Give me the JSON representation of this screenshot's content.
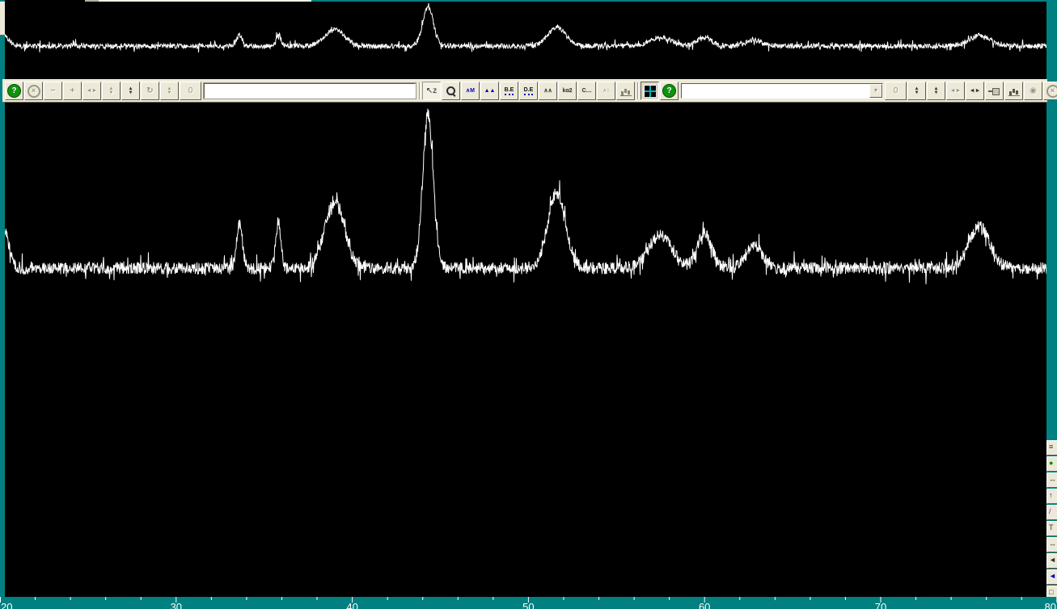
{
  "colors": {
    "workspace_teal": "#008080",
    "toolbar_bg": "#ece9d8",
    "plot_bg": "#000000",
    "trace": "#ffffff",
    "help_green": "#0e930e",
    "icon_blue": "#0000bd",
    "axis_text": "#ffffff"
  },
  "toolbar": {
    "input_value": "",
    "combo_value": "",
    "items": [
      {
        "type": "button",
        "name": "help-button",
        "icon": "help-icon",
        "glyph": "?",
        "style": "help",
        "interactable": true
      },
      {
        "type": "button",
        "name": "abort-button",
        "icon": "close-circle-icon",
        "glyph": "×",
        "style": "xcircle",
        "interactable": false
      },
      {
        "type": "button",
        "name": "zoom-out-button",
        "icon": "minus-icon",
        "glyph": "−",
        "style": "emboss bold",
        "interactable": true
      },
      {
        "type": "button",
        "name": "zoom-in-button",
        "icon": "plus-icon",
        "glyph": "+",
        "style": "emboss bold",
        "interactable": true
      },
      {
        "type": "button",
        "name": "expand-horizontal-button",
        "icon": "h-arrows-icon",
        "glyph": "◄►",
        "style": "emboss small",
        "interactable": true
      },
      {
        "type": "button",
        "name": "scale-vertical-button",
        "icon": "v-arrows-icon",
        "glyph": "▲\n▼",
        "style": "emboss tiny",
        "interactable": true
      },
      {
        "type": "button",
        "name": "pan-vertical-button",
        "icon": "v-arrows-solid-icon",
        "glyph": "▲\n▼",
        "style": "dark tiny",
        "interactable": true
      },
      {
        "type": "button",
        "name": "reset-view-button",
        "icon": "refresh-icon",
        "glyph": "↻",
        "style": "emboss bold",
        "interactable": true
      },
      {
        "type": "button",
        "name": "step-vertical-button",
        "icon": "v-arrows-icon",
        "glyph": "▲\n▼",
        "style": "emboss tiny",
        "interactable": true
      },
      {
        "type": "button",
        "name": "counter-left",
        "icon": "zero-icon",
        "glyph": "0",
        "style": "emboss wide",
        "interactable": false
      },
      {
        "type": "input",
        "name": "scan-name-input"
      },
      {
        "type": "sep",
        "name": "toolbar-separator-1"
      },
      {
        "type": "button",
        "name": "pointer-mode-button",
        "icon": "cursor-z-icon",
        "glyph": "↖z",
        "style": "dark active",
        "interactable": true
      },
      {
        "type": "button",
        "name": "zoom-mode-button",
        "icon": "magnifier-icon",
        "glyph": "",
        "style": "zoom",
        "interactable": true
      },
      {
        "type": "button",
        "name": "peak-search-button",
        "icon": "peak-marker-icon",
        "glyph": "∧M",
        "style": "blue small bold",
        "interactable": true
      },
      {
        "type": "button",
        "name": "profile-fit-button",
        "icon": "filled-peaks-icon",
        "glyph": "▲▲",
        "style": "blue small",
        "interactable": true
      },
      {
        "type": "button",
        "name": "background-edit-button",
        "icon": "be-icon",
        "glyph": "B.E",
        "style": "udots",
        "interactable": true
      },
      {
        "type": "button",
        "name": "data-edit-button",
        "icon": "de-icon",
        "glyph": "D.E",
        "style": "udots",
        "interactable": true
      },
      {
        "type": "button",
        "name": "smooth-button",
        "icon": "outline-peaks-icon",
        "glyph": "∧∧",
        "style": "dark small bold",
        "interactable": true
      },
      {
        "type": "button",
        "name": "kalpha2-strip-button",
        "icon": "kalpha2-icon",
        "glyph": "kα2",
        "style": "dark small bold",
        "interactable": true
      },
      {
        "type": "button",
        "name": "calculate-button",
        "icon": "c-dots-icon",
        "glyph": "C…",
        "style": "dark small bold",
        "interactable": true
      },
      {
        "type": "button",
        "name": "compare-button",
        "icon": "peaks-arrows-icon",
        "glyph": "∧↕",
        "style": "emboss small",
        "interactable": false
      },
      {
        "type": "button",
        "name": "histogram-scale-button",
        "icon": "bars-arrow-icon",
        "glyph": "",
        "style": "bars",
        "interactable": false
      },
      {
        "type": "sep",
        "name": "toolbar-separator-2"
      },
      {
        "type": "button",
        "name": "tile-view-button",
        "icon": "window-grid-icon",
        "glyph": "",
        "style": "grid pressed",
        "interactable": true
      },
      {
        "type": "button",
        "name": "help-button-2",
        "icon": "help-icon",
        "glyph": "?",
        "style": "help",
        "interactable": true
      },
      {
        "type": "combo",
        "name": "phase-combobox"
      },
      {
        "type": "button",
        "name": "counter-right",
        "icon": "zero-icon",
        "glyph": "0",
        "style": "emboss wide",
        "interactable": false
      },
      {
        "type": "button",
        "name": "scroll-up-down-button",
        "icon": "v-arrows-solid-icon",
        "glyph": "▲\n▼",
        "style": "dark tiny",
        "interactable": true
      },
      {
        "type": "button",
        "name": "page-up-down-button",
        "icon": "v-arrows-solid-icon",
        "glyph": "▲\n▼",
        "style": "dark tiny",
        "interactable": true
      },
      {
        "type": "button",
        "name": "scroll-left-right-button",
        "icon": "h-arrows-icon",
        "glyph": "◄►",
        "style": "emboss small",
        "interactable": true
      },
      {
        "type": "button",
        "name": "page-left-right-button",
        "icon": "h-arrows-solid-icon",
        "glyph": "◄►",
        "style": "dark small",
        "interactable": true
      },
      {
        "type": "button",
        "name": "pin-button",
        "icon": "pushpin-icon",
        "glyph": "",
        "style": "pin",
        "interactable": true
      },
      {
        "type": "button",
        "name": "histogram-button",
        "icon": "bar-chart-icon",
        "glyph": "",
        "style": "bars dark-bars",
        "interactable": true
      },
      {
        "type": "button",
        "name": "target-button",
        "icon": "dartboard-icon",
        "glyph": "◉",
        "style": "emboss",
        "interactable": false
      },
      {
        "type": "button",
        "name": "cancel-button",
        "icon": "close-circle-icon",
        "glyph": "×",
        "style": "xcircle",
        "interactable": false
      },
      {
        "type": "button",
        "name": "help-button-3",
        "icon": "help-icon",
        "glyph": "?",
        "style": "help",
        "interactable": true
      }
    ]
  },
  "side_toolbar": {
    "buttons": [
      {
        "name": "side-list-button",
        "icon": "list-icon",
        "glyph": "≡",
        "color": "#30302e"
      },
      {
        "name": "side-globe-button",
        "icon": "globe-icon",
        "glyph": "●",
        "color": "#0a8a0a"
      },
      {
        "name": "side-swap-button",
        "icon": "h-arrows-icon",
        "glyph": "↔",
        "color": "#30302e"
      },
      {
        "name": "side-up-button",
        "icon": "up-arrow-icon",
        "glyph": "↑",
        "color": "#0000bd"
      },
      {
        "name": "side-edit-button",
        "icon": "pencil-icon",
        "glyph": "/",
        "color": "#c000c0"
      },
      {
        "name": "side-text-button",
        "icon": "text-raise-icon",
        "glyph": "T",
        "color": "#30302e"
      },
      {
        "name": "side-move-button",
        "icon": "h-arrows-icon",
        "glyph": "↔",
        "color": "#30302e"
      },
      {
        "name": "side-prev-button",
        "icon": "left-arrow-icon",
        "glyph": "◄",
        "color": "#30302e"
      },
      {
        "name": "side-play-button",
        "icon": "left-triangle-icon",
        "glyph": "◄",
        "color": "#0000bd"
      },
      {
        "name": "side-frame-button",
        "icon": "frame-icon",
        "glyph": "□",
        "color": "#30302e"
      }
    ]
  },
  "chart_data": {
    "type": "line",
    "title": "",
    "xlabel": "",
    "ylabel": "",
    "x_range": [
      20,
      80
    ],
    "x_ticks": [
      20,
      30,
      40,
      50,
      60,
      70,
      80
    ],
    "x_minor_tick_step": 2,
    "grid": false,
    "legend": false,
    "background": "#000000",
    "line_color": "#ffffff",
    "panels": [
      "overview",
      "main"
    ],
    "series": [
      {
        "name": "diffraction-pattern",
        "noise_level": 0.04,
        "peaks": [
          {
            "two_theta": 20.2,
            "height": 0.26,
            "width": 0.3
          },
          {
            "two_theta": 33.6,
            "height": 0.29,
            "width": 0.16
          },
          {
            "two_theta": 35.8,
            "height": 0.3,
            "width": 0.14
          },
          {
            "two_theta": 39.0,
            "height": 0.44,
            "width": 0.55
          },
          {
            "two_theta": 44.3,
            "height": 1.0,
            "width": 0.3
          },
          {
            "two_theta": 51.6,
            "height": 0.49,
            "width": 0.5
          },
          {
            "two_theta": 57.5,
            "height": 0.22,
            "width": 0.65
          },
          {
            "two_theta": 60.0,
            "height": 0.23,
            "width": 0.4
          },
          {
            "two_theta": 62.8,
            "height": 0.15,
            "width": 0.45
          },
          {
            "two_theta": 75.6,
            "height": 0.27,
            "width": 0.6
          }
        ]
      }
    ]
  },
  "axis": {
    "labels": [
      "20",
      "30",
      "40",
      "50",
      "60",
      "70",
      "80"
    ]
  }
}
